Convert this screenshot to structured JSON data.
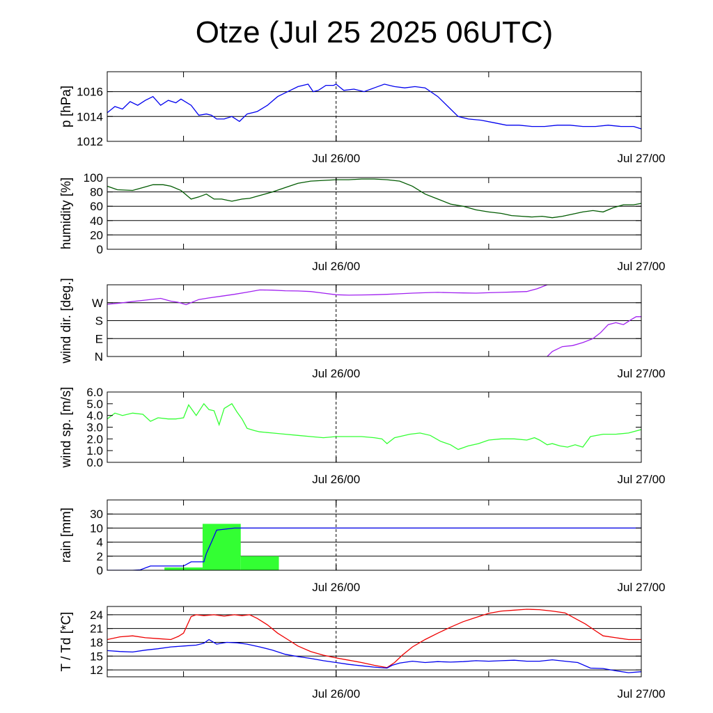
{
  "title": "Otze (Jul 25 2025 06UTC)",
  "x_axis": {
    "start": "Jul 25 06UTC",
    "end": "Jul 27 00UTC",
    "hours": 42,
    "tick_labels": [
      {
        "hour": 18,
        "label": "Jul 26/00"
      },
      {
        "hour": 42,
        "label": "Jul 27/00"
      }
    ],
    "minor_tick_hours": [
      6,
      18,
      30
    ],
    "dashed_marker_hour": 18
  },
  "chart_data": [
    {
      "type": "line",
      "id": "pressure",
      "ylabel": "p [hPa]",
      "ylim": [
        1012,
        1017.6
      ],
      "yticks": [
        1012,
        1014,
        1016
      ],
      "ytick_labels": [
        "1012",
        "1014",
        "1016"
      ],
      "gridlines": [
        1012,
        1014,
        1016
      ],
      "grid": true,
      "series": [
        {
          "color": "#0000ee",
          "x": [
            0,
            0.6,
            1.2,
            1.8,
            2.4,
            3.0,
            3.6,
            4.2,
            4.8,
            5.4,
            5.8,
            6.6,
            7.2,
            7.8,
            8.2,
            8.6,
            9.2,
            9.8,
            10.4,
            11.0,
            11.8,
            12.6,
            13.4,
            14.2,
            15.0,
            15.8,
            16.2,
            16.6,
            17.2,
            17.8,
            18.0,
            18.6,
            19.4,
            20.2,
            21.0,
            21.8,
            22.6,
            23.4,
            24.2,
            25.0,
            26.0,
            27.0,
            27.6,
            28.4,
            29.4,
            30.4,
            31.4,
            32.4,
            33.4,
            34.4,
            35.4,
            36.4,
            37.4,
            38.4,
            39.4,
            40.4,
            41.4,
            42.0
          ],
          "y": [
            1014.3,
            1014.8,
            1014.6,
            1015.2,
            1014.9,
            1015.3,
            1015.6,
            1014.9,
            1015.3,
            1015.1,
            1015.4,
            1014.9,
            1014.1,
            1014.2,
            1014.1,
            1013.8,
            1013.8,
            1014.0,
            1013.6,
            1014.2,
            1014.4,
            1014.9,
            1015.6,
            1016.0,
            1016.4,
            1016.6,
            1016.0,
            1016.1,
            1016.5,
            1016.5,
            1016.6,
            1016.1,
            1016.2,
            1016.0,
            1016.3,
            1016.6,
            1016.4,
            1016.3,
            1016.4,
            1016.3,
            1015.6,
            1014.6,
            1014.0,
            1013.8,
            1013.7,
            1013.5,
            1013.3,
            1013.3,
            1013.2,
            1013.2,
            1013.3,
            1013.3,
            1013.2,
            1013.2,
            1013.3,
            1013.2,
            1013.2,
            1013.0
          ]
        }
      ]
    },
    {
      "type": "line",
      "id": "humidity",
      "ylabel": "humidity [%]",
      "ylim": [
        0,
        100
      ],
      "yticks": [
        0,
        20,
        40,
        60,
        80,
        100
      ],
      "ytick_labels": [
        "0",
        "20",
        "40",
        "60",
        "80",
        "100"
      ],
      "gridlines": [
        20,
        40,
        60,
        80,
        100
      ],
      "grid": true,
      "series": [
        {
          "color": "#005a00",
          "x": [
            0,
            0.8,
            2.0,
            3.0,
            3.6,
            4.4,
            5.0,
            5.8,
            6.6,
            7.2,
            7.8,
            8.4,
            9.0,
            9.8,
            10.6,
            11.2,
            12.0,
            13.0,
            14.0,
            15.0,
            16.0,
            17.0,
            18.0,
            19.0,
            20.0,
            21.0,
            22.0,
            23.0,
            24.0,
            25.0,
            26.0,
            27.0,
            28.0,
            29.0,
            30.0,
            31.0,
            31.8,
            32.6,
            33.4,
            34.2,
            35.0,
            35.8,
            36.6,
            37.4,
            38.2,
            39.0,
            39.8,
            40.6,
            41.4,
            42.0
          ],
          "y": [
            88,
            83,
            82,
            87,
            90,
            90,
            88,
            82,
            70,
            73,
            77,
            70,
            70,
            67,
            70,
            71,
            75,
            80,
            86,
            92,
            95,
            96,
            97,
            97,
            98,
            98,
            97,
            95,
            88,
            77,
            70,
            63,
            60,
            55,
            52,
            50,
            47,
            46,
            45,
            46,
            44,
            46,
            49,
            52,
            54,
            52,
            58,
            62,
            62,
            64
          ]
        }
      ]
    },
    {
      "type": "line",
      "id": "wind_direction",
      "ylabel": "wind dir. [deg.]",
      "ylim": [
        0,
        360
      ],
      "yticks": [
        0,
        90,
        180,
        270
      ],
      "ytick_labels": [
        "N",
        "E",
        "S",
        "W"
      ],
      "gridlines": [
        90,
        180,
        270
      ],
      "grid": true,
      "series": [
        {
          "color": "#a020f0",
          "x": [
            0,
            1.0,
            2.0,
            3.0,
            4.2,
            5.0,
            5.6,
            6.2,
            7.2,
            8.0,
            9.0,
            10.0,
            11.0,
            12.0,
            13.0,
            14.0,
            15.0,
            16.0,
            17.0,
            18.0,
            19.0,
            20.0,
            21.0,
            22.0,
            23.0,
            24.0,
            25.0,
            26.0,
            27.0,
            28.0,
            29.0,
            30.0,
            31.0,
            32.0,
            33.0,
            33.8,
            34.6
          ],
          "y": [
            262,
            268,
            276,
            283,
            292,
            278,
            272,
            260,
            286,
            294,
            303,
            312,
            323,
            334,
            333,
            330,
            329,
            326,
            318,
            310,
            308,
            309,
            310,
            312,
            315,
            318,
            320,
            322,
            320,
            319,
            318,
            320,
            322,
            324,
            326,
            340,
            360
          ]
        },
        {
          "color": "#a020f0",
          "x": [
            34.6,
            35.0,
            35.8,
            36.6,
            37.4,
            38.2,
            38.8,
            39.4,
            40.0,
            40.6,
            41.2,
            41.6,
            42.0
          ],
          "y": [
            0,
            25,
            50,
            55,
            70,
            90,
            120,
            160,
            170,
            160,
            185,
            200,
            200
          ]
        }
      ]
    },
    {
      "type": "line",
      "id": "wind_speed",
      "ylabel": "wind sp. [m/s]",
      "ylim": [
        0,
        6.0
      ],
      "yticks": [
        0,
        1,
        2,
        3,
        4,
        5,
        6
      ],
      "ytick_labels": [
        "0.0",
        "1.0",
        "2.0",
        "3.0",
        "4.0",
        "5.0",
        "6.0"
      ],
      "gridlines": [],
      "grid": false,
      "series": [
        {
          "color": "#33ff33",
          "x": [
            0,
            0.6,
            1.2,
            2.0,
            2.8,
            3.4,
            4.0,
            4.8,
            5.4,
            6.0,
            6.4,
            7.0,
            7.6,
            8.0,
            8.4,
            8.8,
            9.2,
            9.8,
            10.2,
            10.6,
            11.0,
            11.6,
            12.0,
            13.0,
            14.0,
            15.0,
            16.0,
            17.0,
            18.0,
            19.0,
            20.0,
            21.0,
            21.6,
            22.0,
            22.6,
            23.0,
            23.8,
            24.6,
            25.4,
            26.2,
            27.0,
            27.6,
            28.4,
            29.2,
            30.0,
            31.0,
            32.0,
            33.0,
            33.6,
            34.0,
            34.6,
            35.0,
            35.6,
            36.2,
            36.8,
            37.4,
            38.0,
            39.0,
            40.0,
            41.0,
            42.0
          ],
          "y": [
            3.7,
            4.2,
            4.0,
            4.2,
            4.1,
            3.5,
            3.8,
            3.7,
            3.7,
            3.8,
            4.9,
            4.0,
            5.0,
            4.5,
            4.4,
            3.2,
            4.6,
            5.0,
            4.3,
            3.7,
            2.9,
            2.7,
            2.6,
            2.5,
            2.4,
            2.3,
            2.2,
            2.1,
            2.2,
            2.2,
            2.2,
            2.1,
            2.0,
            1.6,
            2.1,
            2.2,
            2.4,
            2.5,
            2.3,
            1.8,
            1.5,
            1.1,
            1.4,
            1.6,
            1.9,
            2.0,
            2.0,
            1.9,
            2.1,
            1.9,
            1.5,
            1.6,
            1.4,
            1.3,
            1.5,
            1.3,
            2.2,
            2.4,
            2.4,
            2.5,
            2.8
          ]
        }
      ]
    },
    {
      "type": "bar",
      "id": "rain",
      "ylabel": "rain [mm]",
      "ylim": [
        0,
        5
      ],
      "yticks": [
        0,
        1,
        2,
        3,
        4,
        5
      ],
      "ytick_labels": [
        "0",
        "2",
        "4",
        "10",
        "30"
      ],
      "ytick_positions": [
        0,
        1,
        2,
        3,
        4
      ],
      "gridlines": [
        1,
        2,
        3,
        4
      ],
      "grid": true,
      "bars": {
        "color": "#33ff33",
        "x_start": [
          4.5,
          7.5,
          10.5
        ],
        "x_end": [
          7.5,
          10.5,
          13.5
        ],
        "values": [
          0.2,
          3.3,
          1.0
        ]
      },
      "series": [
        {
          "color": "#0000ee",
          "x": [
            0,
            2.0,
            2.6,
            3.4,
            6.0,
            6.6,
            7.6,
            7.8,
            8.2,
            8.6,
            10.0,
            42.0
          ],
          "y": [
            0,
            0,
            0.03,
            0.3,
            0.3,
            0.6,
            0.6,
            1.2,
            2.0,
            2.85,
            3.0,
            3.0
          ]
        }
      ]
    },
    {
      "type": "line",
      "id": "temperature",
      "ylabel": "T / Td [*C]",
      "ylim": [
        10.5,
        25.8
      ],
      "yticks": [
        12,
        15,
        18,
        21,
        24
      ],
      "ytick_labels": [
        "12",
        "15",
        "18",
        "21",
        "24"
      ],
      "gridlines": [
        12,
        15,
        18,
        21,
        24
      ],
      "grid": true,
      "series": [
        {
          "color": "#ee0000",
          "x": [
            0,
            1.0,
            2.0,
            3.0,
            4.0,
            5.0,
            5.6,
            6.0,
            6.6,
            7.0,
            7.6,
            8.4,
            9.2,
            10.0,
            10.6,
            11.2,
            11.8,
            12.6,
            13.4,
            14.2,
            15.0,
            16.0,
            17.0,
            18.0,
            19.0,
            20.0,
            21.0,
            21.8,
            22.0,
            22.6,
            23.2,
            24.0,
            25.0,
            26.0,
            27.0,
            28.0,
            29.0,
            30.0,
            31.0,
            32.0,
            33.0,
            34.0,
            35.0,
            36.0,
            36.8,
            37.6,
            38.4,
            39.0,
            40.0,
            41.0,
            42.0
          ],
          "y": [
            18.6,
            19.2,
            19.4,
            19.0,
            18.8,
            18.6,
            19.3,
            20.0,
            23.6,
            24.0,
            23.8,
            24.0,
            23.7,
            24.0,
            23.8,
            24.0,
            23.2,
            21.8,
            20.0,
            18.6,
            17.2,
            16.0,
            15.2,
            14.6,
            14.1,
            13.6,
            13.0,
            12.6,
            12.5,
            13.6,
            15.2,
            17.0,
            18.6,
            20.0,
            21.3,
            22.5,
            23.4,
            24.3,
            24.8,
            25.0,
            25.2,
            25.1,
            24.8,
            24.4,
            23.2,
            22.0,
            20.5,
            19.4,
            19.0,
            18.6,
            18.6
          ]
        },
        {
          "color": "#0000ee",
          "x": [
            0,
            1.0,
            2.0,
            3.0,
            4.0,
            5.0,
            6.0,
            7.0,
            7.6,
            8.0,
            8.6,
            9.4,
            10.2,
            11.0,
            12.0,
            13.0,
            14.0,
            15.0,
            16.0,
            17.0,
            18.0,
            19.0,
            20.0,
            21.0,
            22.0,
            22.4,
            23.0,
            24.0,
            25.0,
            26.0,
            27.0,
            28.0,
            29.0,
            30.0,
            31.0,
            32.0,
            33.0,
            34.0,
            35.0,
            36.0,
            37.0,
            38.0,
            39.0,
            40.0,
            41.0,
            42.0
          ],
          "y": [
            16.2,
            16.0,
            15.9,
            16.3,
            16.6,
            17.0,
            17.2,
            17.4,
            17.8,
            18.6,
            17.6,
            18.0,
            17.9,
            17.6,
            17.0,
            16.3,
            15.4,
            14.9,
            14.5,
            14.0,
            13.6,
            13.2,
            12.9,
            12.6,
            12.4,
            13.0,
            13.5,
            13.9,
            13.6,
            13.8,
            13.7,
            13.8,
            14.0,
            13.9,
            14.0,
            14.1,
            13.9,
            13.9,
            14.2,
            13.9,
            13.6,
            12.4,
            12.3,
            11.8,
            11.4,
            11.6
          ]
        }
      ]
    }
  ]
}
